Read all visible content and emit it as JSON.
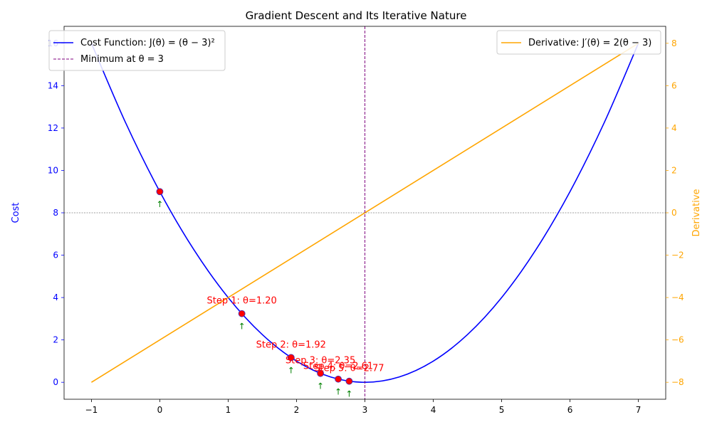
{
  "chart_data": {
    "type": "line",
    "title": "Gradient Descent and Its Iterative Nature",
    "xlim": [
      -1.4,
      7.4
    ],
    "x_ticks": [
      -1,
      0,
      1,
      2,
      3,
      4,
      5,
      6,
      7
    ],
    "left_axis": {
      "label": "Cost",
      "color": "#0000ff",
      "ylim": [
        -0.8,
        16.8
      ],
      "ticks": [
        0,
        2,
        4,
        6,
        8,
        10,
        12,
        14,
        16
      ]
    },
    "right_axis": {
      "label": "Derivative",
      "color": "#ffa500",
      "ylim": [
        -8.8,
        8.8
      ],
      "ticks": [
        -8,
        -6,
        -4,
        -2,
        0,
        2,
        4,
        6,
        8
      ]
    },
    "series": [
      {
        "name": "Cost Function: J(θ) = (θ − 3)²",
        "axis": "left",
        "color": "#0000ff",
        "x": [
          -1,
          -0.5,
          0,
          0.5,
          1,
          1.5,
          2,
          2.5,
          3,
          3.5,
          4,
          4.5,
          5,
          5.5,
          6,
          6.5,
          7
        ],
        "y": [
          16,
          12.25,
          9,
          6.25,
          4,
          2.25,
          1,
          0.25,
          0,
          0.25,
          1,
          2.25,
          4,
          6.25,
          9,
          12.25,
          16
        ]
      },
      {
        "name": "Derivative: J′(θ) = 2(θ − 3)",
        "axis": "right",
        "color": "#ffa500",
        "x": [
          -1,
          7
        ],
        "y": [
          -8,
          8
        ]
      }
    ],
    "minimum_line": {
      "name": "Minimum at θ = 3",
      "x": 3,
      "color": "#800080"
    },
    "zero_derivative_line": {
      "y": 0,
      "color": "#808080"
    },
    "steps": {
      "color": "#ff0000",
      "arrow_color": "#008000",
      "points": [
        {
          "x": 0.0,
          "y": 9.0,
          "label": ""
        },
        {
          "x": 1.2,
          "y": 3.24,
          "label": "Step 1: θ=1.20"
        },
        {
          "x": 1.92,
          "y": 1.17,
          "label": "Step 2: θ=1.92"
        },
        {
          "x": 2.35,
          "y": 0.42,
          "label": "Step 3: θ=2.35"
        },
        {
          "x": 2.61,
          "y": 0.15,
          "label": "Step 4: θ=2.61"
        },
        {
          "x": 2.77,
          "y": 0.05,
          "label": "Step 5: θ=2.77"
        }
      ]
    },
    "legend_left": {
      "position": "upper-left",
      "entries": [
        {
          "text": "Cost Function: J(θ) = (θ − 3)²",
          "color": "#0000ff",
          "style": "solid"
        },
        {
          "text": "Minimum at θ = 3",
          "color": "#800080",
          "style": "dashed"
        }
      ]
    },
    "legend_right": {
      "position": "upper-right",
      "entries": [
        {
          "text": "Derivative: J′(θ) = 2(θ − 3)",
          "color": "#ffa500",
          "style": "solid"
        }
      ]
    }
  }
}
